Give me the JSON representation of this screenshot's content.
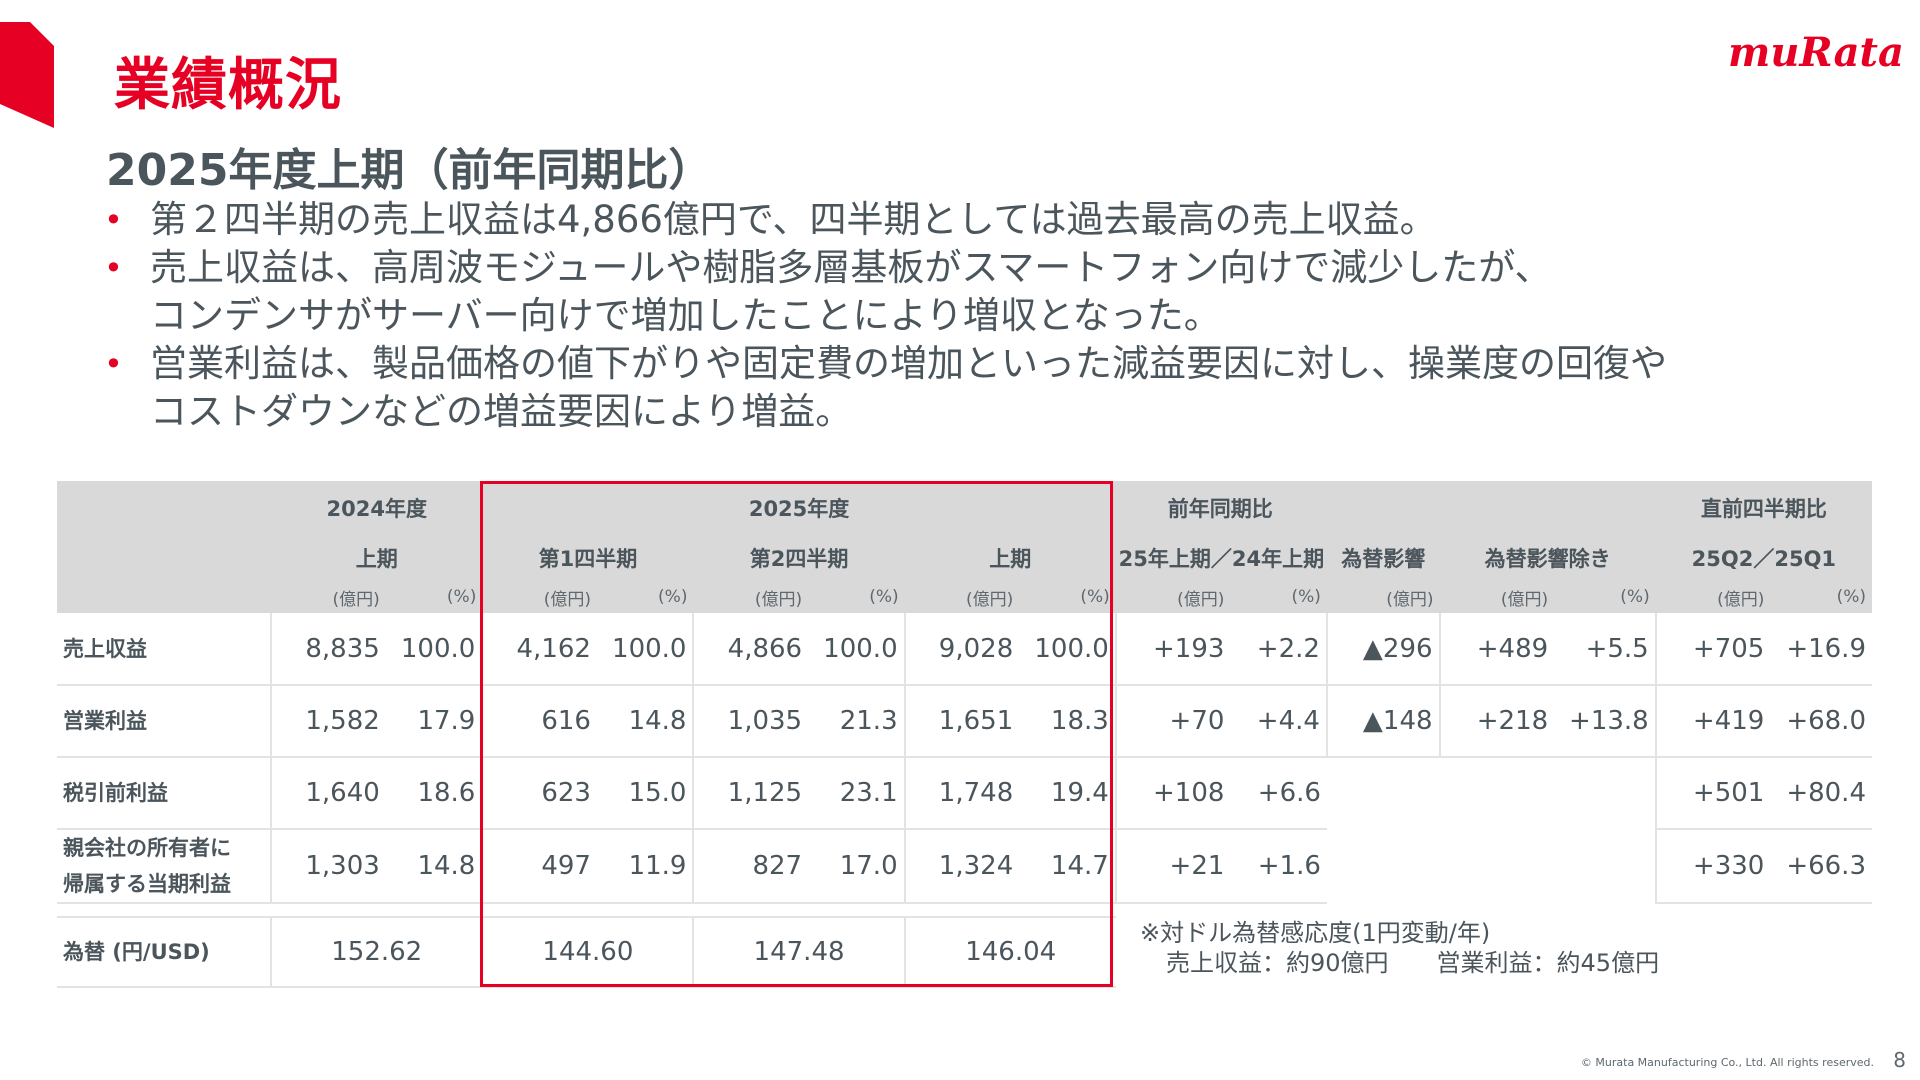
{
  "brand": {
    "accent": "#e60023",
    "logo_text": "muRata"
  },
  "page_title": "業績概況",
  "subtitle": "2025年度上期（前年同期比）",
  "bullets": [
    [
      "第２四半期の売上収益は4,866億円で、四半期としては過去最高の売上収益。"
    ],
    [
      "売上収益は、高周波モジュールや樹脂多層基板がスマートフォン向けで減少したが、",
      "コンデンサがサーバー向けで増加したことにより増収となった。"
    ],
    [
      "営業利益は、製品価格の値下がりや固定費の増加といった減益要因に対し、操業度の回復や",
      "コストダウンなどの増益要因により増益。"
    ]
  ],
  "table": {
    "headers": {
      "fy2024": "2024年度",
      "fy2025": "2025年度",
      "yoy": "前年同期比",
      "qoq": "直前四半期比",
      "h1": "上期",
      "q1": "第1四半期",
      "q2": "第2四半期",
      "h1_2025": "上期",
      "yoy_sub": "25年上期／24年上期",
      "fx_impact": "為替影響",
      "ex_fx": "為替影響除き",
      "qoq_sub": "25Q2／25Q1",
      "unit_amount": "(億円)",
      "unit_pct": "(%)"
    },
    "rows": [
      {
        "label": "売上収益",
        "v": [
          "8,835",
          "100.0",
          "4,162",
          "100.0",
          "4,866",
          "100.0",
          "9,028",
          "100.0",
          "+193",
          "+2.2",
          "▲296",
          "+489",
          "+5.5",
          "+705",
          "+16.9"
        ]
      },
      {
        "label": "営業利益",
        "v": [
          "1,582",
          "17.9",
          "616",
          "14.8",
          "1,035",
          "21.3",
          "1,651",
          "18.3",
          "+70",
          "+4.4",
          "▲148",
          "+218",
          "+13.8",
          "+419",
          "+68.0"
        ]
      },
      {
        "label": "税引前利益",
        "v": [
          "1,640",
          "18.6",
          "623",
          "15.0",
          "1,125",
          "23.1",
          "1,748",
          "19.4",
          "+108",
          "+6.6",
          "",
          "",
          "",
          "+501",
          "+80.4"
        ]
      },
      {
        "label_l1": "親会社の所有者に",
        "label_l2": "帰属する当期利益",
        "v": [
          "1,303",
          "14.8",
          "497",
          "11.9",
          "827",
          "17.0",
          "1,324",
          "14.7",
          "+21",
          "+1.6",
          "",
          "",
          "",
          "+330",
          "+66.3"
        ]
      }
    ],
    "fx_row": {
      "label": "為替 (円/USD)",
      "fy2024_h1": "152.62",
      "q1": "144.60",
      "q2": "147.48",
      "h1": "146.04"
    }
  },
  "note": {
    "line1": "※対ドル為替感応度(1円変動/年)",
    "line2": "売上収益：約90億円　　営業利益：約45億円"
  },
  "footer": {
    "copyright": "© Murata Manufacturing Co., Ltd. All rights reserved.",
    "page_number": "8"
  }
}
